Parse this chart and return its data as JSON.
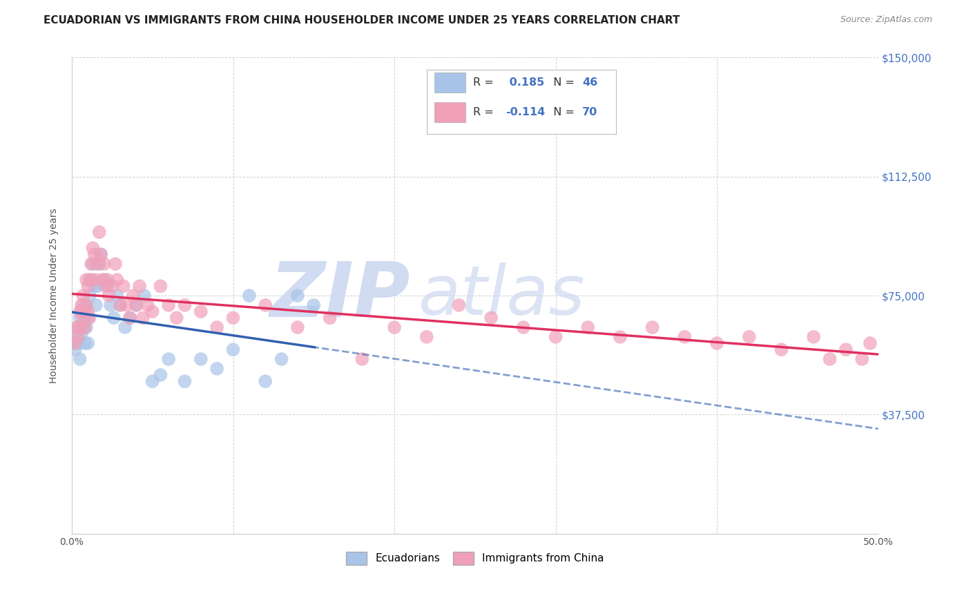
{
  "title": "ECUADORIAN VS IMMIGRANTS FROM CHINA HOUSEHOLDER INCOME UNDER 25 YEARS CORRELATION CHART",
  "source": "Source: ZipAtlas.com",
  "ylabel": "Householder Income Under 25 years",
  "xlim": [
    0.0,
    0.5
  ],
  "ylim": [
    0,
    150000
  ],
  "yticks": [
    0,
    37500,
    75000,
    112500,
    150000
  ],
  "ytick_labels": [
    "",
    "$37,500",
    "$75,000",
    "$112,500",
    "$150,000"
  ],
  "xticks": [
    0.0,
    0.1,
    0.2,
    0.3,
    0.4,
    0.5
  ],
  "xtick_labels": [
    "0.0%",
    "",
    "",
    "",
    "",
    "50.0%"
  ],
  "series": [
    {
      "name": "Ecuadorians",
      "R": 0.185,
      "N": 46,
      "color": "#a8c4e8",
      "line_color": "#3060b0",
      "x": [
        0.002,
        0.003,
        0.004,
        0.004,
        0.005,
        0.005,
        0.006,
        0.006,
        0.007,
        0.007,
        0.008,
        0.008,
        0.009,
        0.009,
        0.01,
        0.01,
        0.011,
        0.012,
        0.013,
        0.014,
        0.015,
        0.016,
        0.017,
        0.018,
        0.02,
        0.022,
        0.024,
        0.026,
        0.028,
        0.03,
        0.033,
        0.036,
        0.04,
        0.045,
        0.05,
        0.055,
        0.06,
        0.07,
        0.08,
        0.09,
        0.1,
        0.11,
        0.12,
        0.13,
        0.14,
        0.15
      ],
      "y": [
        58000,
        62000,
        65000,
        60000,
        68000,
        55000,
        70000,
        63000,
        72000,
        65000,
        68000,
        60000,
        72000,
        65000,
        68000,
        60000,
        75000,
        80000,
        85000,
        78000,
        72000,
        78000,
        85000,
        88000,
        80000,
        78000,
        72000,
        68000,
        75000,
        72000,
        65000,
        68000,
        72000,
        75000,
        48000,
        50000,
        55000,
        48000,
        55000,
        52000,
        58000,
        75000,
        48000,
        55000,
        75000,
        72000
      ]
    },
    {
      "name": "Immigrants from China",
      "R": -0.114,
      "N": 70,
      "color": "#f0a0b8",
      "line_color": "#e03060",
      "x": [
        0.002,
        0.003,
        0.004,
        0.005,
        0.005,
        0.006,
        0.007,
        0.007,
        0.008,
        0.008,
        0.009,
        0.009,
        0.01,
        0.01,
        0.011,
        0.011,
        0.012,
        0.013,
        0.014,
        0.015,
        0.016,
        0.017,
        0.018,
        0.019,
        0.02,
        0.021,
        0.022,
        0.023,
        0.025,
        0.027,
        0.028,
        0.03,
        0.032,
        0.034,
        0.036,
        0.038,
        0.04,
        0.042,
        0.044,
        0.047,
        0.05,
        0.055,
        0.06,
        0.065,
        0.07,
        0.08,
        0.09,
        0.1,
        0.12,
        0.14,
        0.16,
        0.18,
        0.2,
        0.22,
        0.24,
        0.26,
        0.28,
        0.3,
        0.32,
        0.34,
        0.36,
        0.38,
        0.4,
        0.42,
        0.44,
        0.46,
        0.47,
        0.48,
        0.49,
        0.495
      ],
      "y": [
        60000,
        65000,
        62000,
        70000,
        65000,
        72000,
        68000,
        75000,
        70000,
        65000,
        80000,
        72000,
        78000,
        70000,
        80000,
        68000,
        85000,
        90000,
        88000,
        80000,
        85000,
        95000,
        88000,
        80000,
        85000,
        78000,
        80000,
        75000,
        78000,
        85000,
        80000,
        72000,
        78000,
        72000,
        68000,
        75000,
        72000,
        78000,
        68000,
        72000,
        70000,
        78000,
        72000,
        68000,
        72000,
        70000,
        65000,
        68000,
        72000,
        65000,
        68000,
        55000,
        65000,
        62000,
        72000,
        68000,
        65000,
        62000,
        65000,
        62000,
        65000,
        62000,
        60000,
        62000,
        58000,
        62000,
        55000,
        58000,
        55000,
        60000
      ]
    }
  ],
  "watermark": "ZIPatlas",
  "watermark_color": "#ccddf5",
  "background_color": "#ffffff",
  "grid_color": "#cccccc",
  "title_fontsize": 11,
  "axis_label_fontsize": 10,
  "tick_fontsize": 10
}
